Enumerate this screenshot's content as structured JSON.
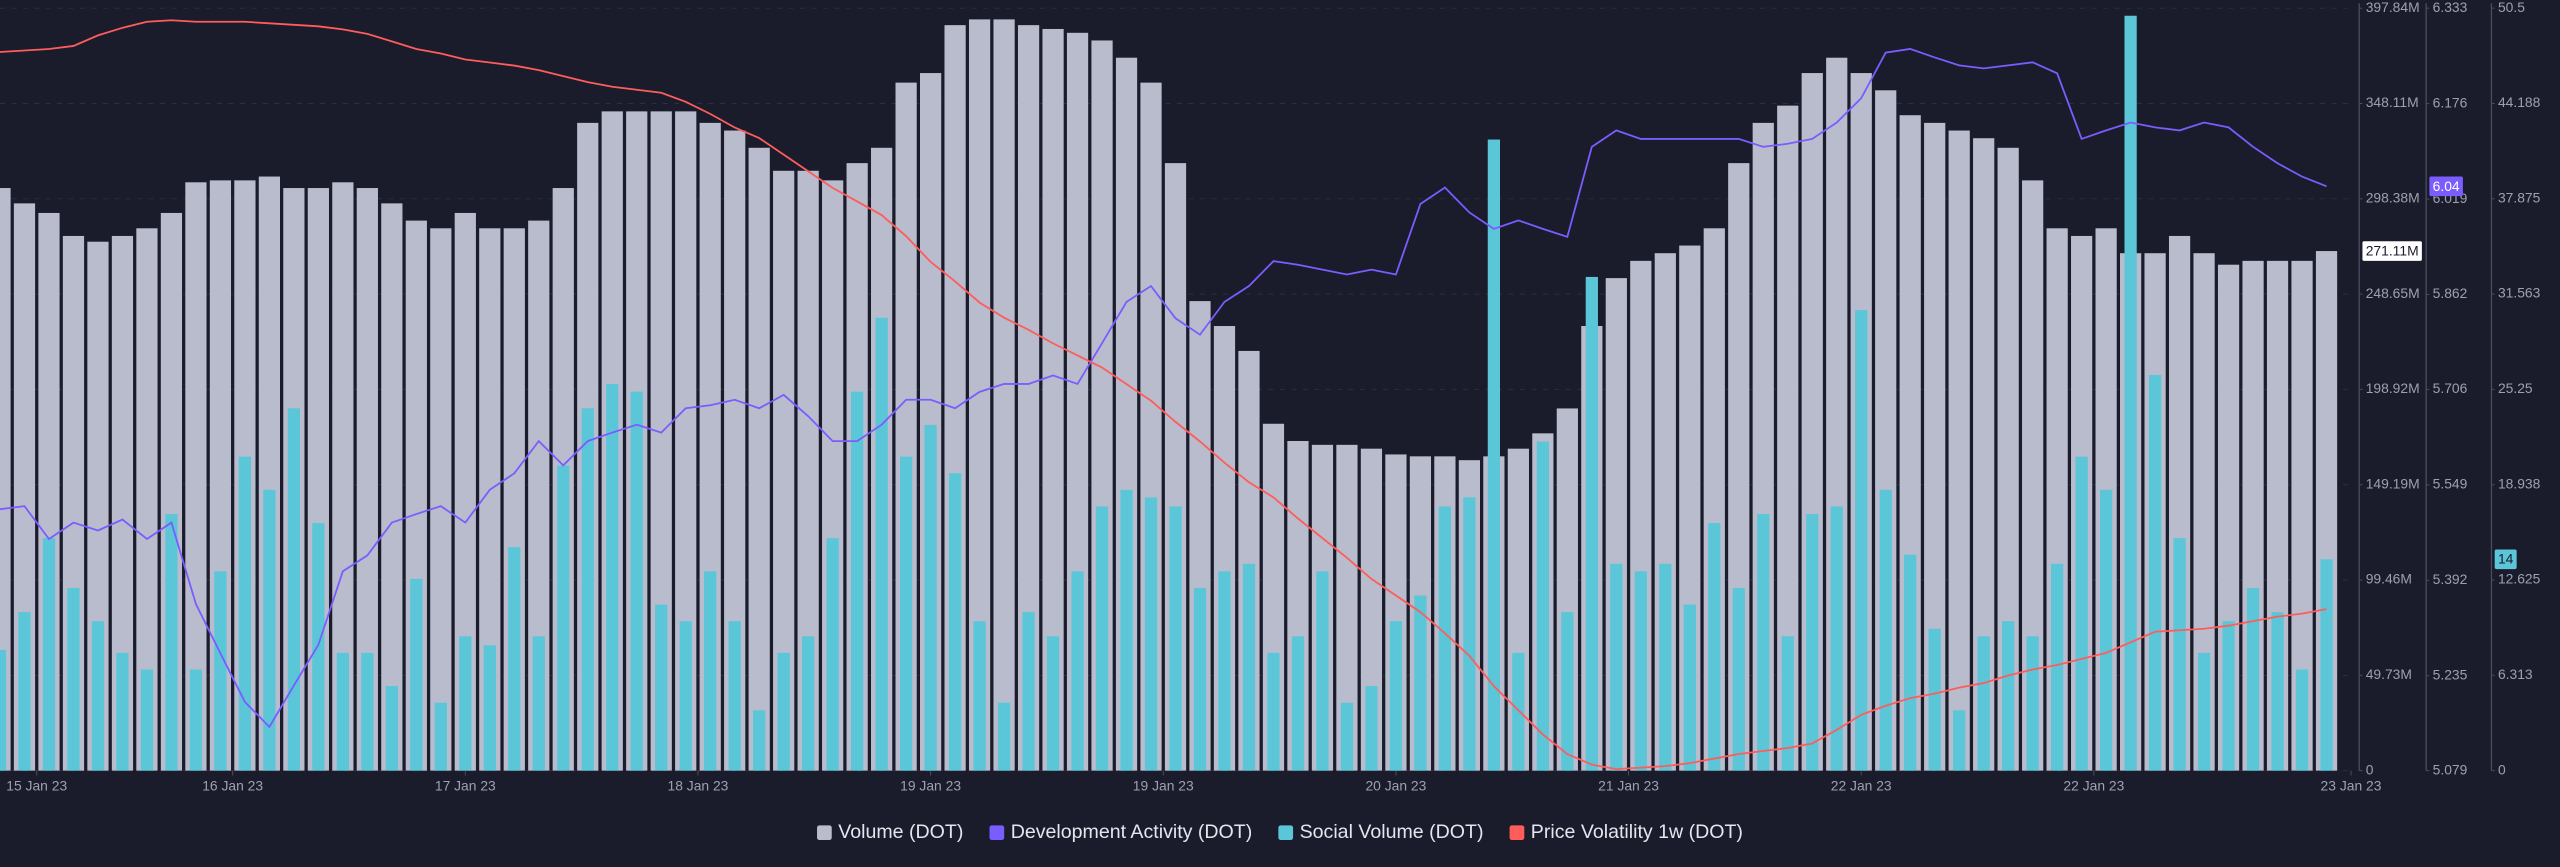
{
  "chart_data": {
    "type": "combo",
    "x": [
      0,
      1,
      2,
      3,
      4,
      5,
      6,
      7,
      8,
      9,
      10,
      11,
      12,
      13,
      14,
      15,
      16,
      17,
      18,
      19,
      20,
      21,
      22,
      23,
      24,
      25,
      26,
      27,
      28,
      29,
      30,
      31,
      32,
      33,
      34,
      35,
      36,
      37,
      38,
      39,
      40,
      41,
      42,
      43,
      44,
      45,
      46,
      47,
      48,
      49,
      50,
      51,
      52,
      53,
      54,
      55,
      56,
      57,
      58,
      59,
      60,
      61,
      62,
      63,
      64,
      65,
      66,
      67,
      68,
      69,
      70,
      71,
      72,
      73,
      74,
      75,
      76,
      77,
      78,
      79,
      80,
      81,
      82,
      83,
      84,
      85,
      86,
      87,
      88,
      89,
      90,
      91,
      92,
      93,
      94,
      95
    ],
    "xlim": [
      0,
      96
    ],
    "xticks": [
      {
        "value": 1.5,
        "label": "15 Jan 23"
      },
      {
        "value": 9.5,
        "label": "16 Jan 23"
      },
      {
        "value": 19,
        "label": "17 Jan 23"
      },
      {
        "value": 28.5,
        "label": "18 Jan 23"
      },
      {
        "value": 38,
        "label": "19 Jan 23"
      },
      {
        "value": 47.5,
        "label": "19 Jan 23"
      },
      {
        "value": 57,
        "label": "20 Jan 23"
      },
      {
        "value": 66.5,
        "label": "21 Jan 23"
      },
      {
        "value": 76,
        "label": "22 Jan 23"
      },
      {
        "value": 85.5,
        "label": "22 Jan 23"
      },
      {
        "value": 96,
        "label": "23 Jan 23"
      }
    ],
    "ylim": [
      0,
      397840000
    ],
    "yticks": [
      0,
      {
        "value": 49730000,
        "label": "49.73M"
      },
      {
        "value": 99460000,
        "label": "99.46M"
      },
      {
        "value": 149190000,
        "label": "149.19M"
      },
      {
        "value": 198920000,
        "label": "198.92M"
      },
      {
        "value": 248650000,
        "label": "248.65M"
      },
      {
        "value": 298380000,
        "label": "298.38M"
      },
      {
        "value": 348110000,
        "label": "348.11M"
      },
      {
        "value": 397840000,
        "label": "397.84M"
      }
    ],
    "y2lim": [
      5.079,
      6.333
    ],
    "y2ticks": [
      5.079,
      5.235,
      5.392,
      5.549,
      5.706,
      5.862,
      6.019,
      6.176,
      6.333
    ],
    "y3lim": [
      0,
      50.5
    ],
    "y3ticks": [
      0,
      6.313,
      12.625,
      18.938,
      25.25,
      31.563,
      37.875,
      44.188,
      50.5
    ],
    "grid": true,
    "legend": "bottom",
    "series": [
      {
        "name": "Volume (DOT)",
        "type": "bar",
        "axis": "y",
        "color": "#b9bccc",
        "values": [
          304000000,
          296000000,
          291000000,
          279000000,
          276000000,
          279000000,
          283000000,
          291000000,
          307000000,
          308000000,
          308000000,
          310000000,
          304000000,
          304000000,
          307000000,
          304000000,
          296000000,
          287000000,
          283000000,
          291000000,
          283000000,
          283000000,
          287000000,
          304000000,
          338000000,
          344000000,
          344000000,
          344000000,
          344000000,
          338000000,
          334000000,
          325000000,
          313000000,
          313000000,
          308000000,
          317000000,
          325000000,
          359000000,
          364000000,
          389000000,
          392000000,
          392000000,
          389000000,
          387000000,
          385000000,
          381000000,
          372000000,
          359000000,
          317000000,
          245000000,
          232000000,
          219000000,
          181000000,
          172000000,
          170000000,
          170000000,
          168000000,
          165000000,
          164000000,
          164000000,
          162000000,
          164000000,
          168000000,
          176000000,
          189000000,
          232000000,
          257000000,
          266000000,
          270000000,
          274000000,
          283000000,
          317000000,
          338000000,
          347000000,
          364000000,
          372000000,
          364000000,
          355000000,
          342000000,
          338000000,
          334000000,
          330000000,
          325000000,
          308000000,
          283000000,
          279000000,
          283000000,
          270000000,
          270000000,
          279000000,
          270000000,
          264000000,
          266000000,
          266000000,
          266000000,
          271110000
        ],
        "value_labels": [
          null,
          null,
          null,
          null,
          null,
          null,
          null,
          null,
          null,
          null,
          null,
          null,
          null,
          null,
          null,
          null,
          null,
          null,
          null,
          null,
          null,
          null,
          null,
          null,
          null,
          null,
          null,
          null,
          null,
          null,
          null,
          null,
          null,
          null,
          null,
          null,
          null,
          null,
          null,
          null,
          null,
          null,
          null,
          null,
          null,
          null,
          null,
          null,
          null,
          null,
          null,
          null,
          null,
          null,
          null,
          null,
          null,
          null,
          null,
          null,
          null,
          null,
          null,
          null,
          null,
          null,
          null,
          null,
          null,
          null,
          null,
          null,
          null,
          null,
          null,
          null,
          null,
          null,
          null,
          null,
          null,
          null,
          null,
          null,
          null,
          null,
          null,
          null,
          null,
          null,
          null,
          null,
          null,
          null,
          null,
          "271.11M"
        ]
      },
      {
        "name": "Development Activity (DOT)",
        "type": "line",
        "axis": "y2",
        "color": "#7b5cff",
        "values": [
          5.509,
          5.514,
          5.46,
          5.487,
          5.474,
          5.492,
          5.46,
          5.487,
          5.353,
          5.272,
          5.192,
          5.151,
          5.219,
          5.286,
          5.407,
          5.433,
          5.487,
          5.501,
          5.514,
          5.487,
          5.541,
          5.568,
          5.621,
          5.581,
          5.621,
          5.635,
          5.648,
          5.635,
          5.675,
          5.68,
          5.689,
          5.675,
          5.697,
          5.662,
          5.621,
          5.621,
          5.648,
          5.689,
          5.689,
          5.675,
          5.702,
          5.715,
          5.715,
          5.729,
          5.715,
          5.782,
          5.85,
          5.876,
          5.823,
          5.796,
          5.85,
          5.876,
          5.917,
          5.911,
          5.903,
          5.895,
          5.903,
          5.895,
          6.011,
          6.038,
          5.997,
          5.97,
          5.984,
          5.97,
          5.957,
          6.105,
          6.132,
          6.118,
          6.118,
          6.118,
          6.118,
          6.118,
          6.105,
          6.11,
          6.118,
          6.145,
          6.185,
          6.26,
          6.266,
          6.252,
          6.239,
          6.234,
          6.239,
          6.244,
          6.226,
          6.118,
          6.132,
          6.145,
          6.137,
          6.132,
          6.145,
          6.137,
          6.105,
          6.078,
          6.056,
          6.04
        ]
      },
      {
        "name": "Social Volume (DOT)",
        "type": "bar",
        "axis": "y3",
        "color": "#5bc6d8",
        "values": [
          8,
          10.5,
          15.4,
          12.1,
          9.9,
          7.8,
          6.7,
          17,
          6.7,
          13.2,
          20.8,
          18.6,
          24,
          16.4,
          7.8,
          7.8,
          5.6,
          12.7,
          4.5,
          8.9,
          8.3,
          14.8,
          8.9,
          20.2,
          24,
          25.6,
          25.1,
          11,
          9.9,
          13.2,
          9.9,
          4,
          7.8,
          8.9,
          15.4,
          25.1,
          30,
          20.8,
          22.9,
          19.7,
          9.9,
          4.5,
          10.5,
          8.9,
          13.2,
          17.5,
          18.6,
          18.1,
          17.5,
          12.1,
          13.2,
          13.7,
          7.8,
          8.9,
          13.2,
          4.5,
          5.6,
          9.9,
          11.6,
          17.5,
          18.1,
          41.8,
          7.8,
          21.8,
          10.5,
          32.7,
          13.7,
          13.2,
          13.7,
          11,
          16.4,
          12.1,
          17,
          8.9,
          17,
          17.5,
          30.5,
          18.6,
          14.3,
          9.4,
          4,
          8.9,
          9.9,
          8.9,
          13.7,
          20.8,
          18.6,
          50,
          26.2,
          15.4,
          7.8,
          9.9,
          12.1,
          10.5,
          6.7,
          14
        ]
      },
      {
        "name": "Price Volatility 1w (DOT)",
        "type": "line",
        "axis": "y3",
        "color": "#ff5c5c",
        "values": [
          47.6,
          47.7,
          47.8,
          48,
          48.7,
          49.2,
          49.6,
          49.7,
          49.6,
          49.6,
          49.6,
          49.5,
          49.4,
          49.3,
          49.1,
          48.8,
          48.3,
          47.8,
          47.5,
          47.1,
          46.9,
          46.7,
          46.4,
          46,
          45.6,
          45.3,
          45.1,
          44.9,
          44.3,
          43.5,
          42.6,
          41.9,
          40.8,
          39.7,
          38.6,
          37.7,
          36.8,
          35.4,
          33.7,
          32.4,
          31,
          30,
          29.2,
          28.3,
          27.5,
          26.7,
          25.6,
          24.5,
          23.1,
          21.8,
          20.4,
          19.1,
          18.1,
          16.7,
          15.4,
          14.1,
          12.7,
          11.6,
          10.5,
          9.1,
          7.6,
          5.6,
          4,
          2.4,
          1.1,
          0.4,
          0.1,
          0.2,
          0.3,
          0.5,
          0.8,
          1.1,
          1.3,
          1.5,
          1.8,
          2.7,
          3.7,
          4.3,
          4.8,
          5.1,
          5.5,
          5.8,
          6.3,
          6.7,
          7,
          7.4,
          7.8,
          8.5,
          9.2,
          9.3,
          9.4,
          9.6,
          9.9,
          10.2,
          10.4,
          10.7
        ]
      }
    ]
  }
}
